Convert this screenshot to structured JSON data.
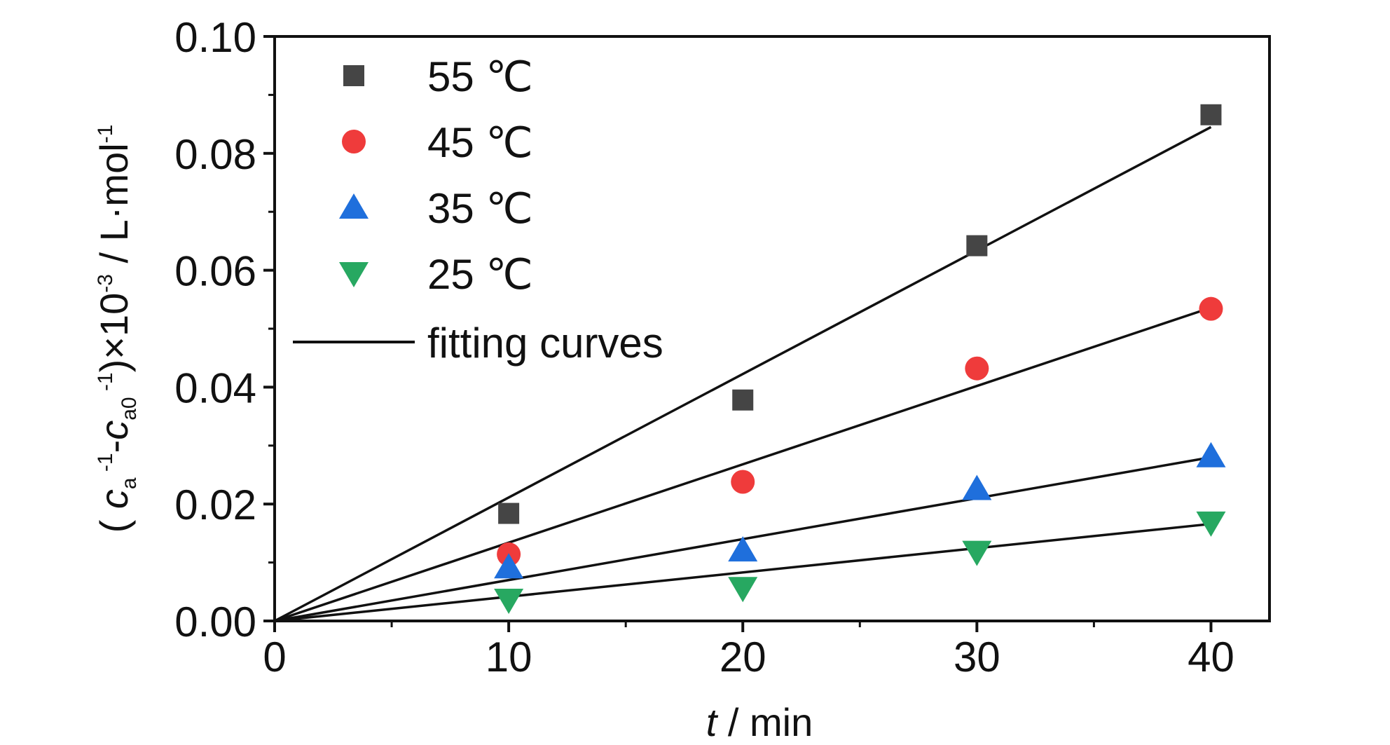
{
  "chart_data": {
    "type": "scatter",
    "xlabel": {
      "var": "t",
      "rest": " / min"
    },
    "ylabel": {
      "open": "( ",
      "c1": "c",
      "sub1": "a",
      "sup1": " -1",
      "mid": "-",
      "c2": "c",
      "sub2": "a0",
      "sup2": " -1",
      "close": ")×10",
      "exp": "-3",
      "unit": " / L·mol",
      "unitexp": "-1"
    },
    "xlim": [
      0,
      42.5
    ],
    "ylim": [
      0,
      0.1
    ],
    "xticks": [
      "0",
      "10",
      "20",
      "30",
      "40"
    ],
    "xtick_values": [
      0,
      10,
      20,
      30,
      40
    ],
    "yticks": [
      "0.00",
      "0.02",
      "0.04",
      "0.06",
      "0.08",
      "0.10"
    ],
    "ytick_values": [
      0,
      0.02,
      0.04,
      0.06,
      0.08,
      0.1
    ],
    "grid": false,
    "legend_position": "top-left",
    "series": [
      {
        "name": "55 ℃",
        "marker": "square",
        "color": "#454545",
        "x": [
          10,
          20,
          30,
          40
        ],
        "y": [
          0.0184,
          0.0378,
          0.0642,
          0.0866
        ],
        "fit": {
          "x": [
            0,
            40
          ],
          "y": [
            0,
            0.0845
          ]
        }
      },
      {
        "name": "45 ℃",
        "marker": "circle",
        "color": "#ef3b3b",
        "x": [
          10,
          20,
          30,
          40
        ],
        "y": [
          0.0114,
          0.0238,
          0.0432,
          0.0534
        ],
        "fit": {
          "x": [
            0,
            40
          ],
          "y": [
            0,
            0.0536
          ]
        }
      },
      {
        "name": "35 ℃",
        "marker": "triangle-up",
        "color": "#1f6fdc",
        "x": [
          10,
          20,
          30,
          40
        ],
        "y": [
          0.0092,
          0.0121,
          0.0226,
          0.0282
        ],
        "fit": {
          "x": [
            0,
            40
          ],
          "y": [
            0,
            0.028
          ]
        }
      },
      {
        "name": "25 ℃",
        "marker": "triangle-down",
        "color": "#27a861",
        "x": [
          10,
          20,
          30,
          40
        ],
        "y": [
          0.0036,
          0.0056,
          0.0118,
          0.0168
        ],
        "fit": {
          "x": [
            0,
            40
          ],
          "y": [
            0,
            0.0166
          ]
        }
      }
    ],
    "fit_legend": "fitting curves",
    "fit_color": "#111111"
  }
}
